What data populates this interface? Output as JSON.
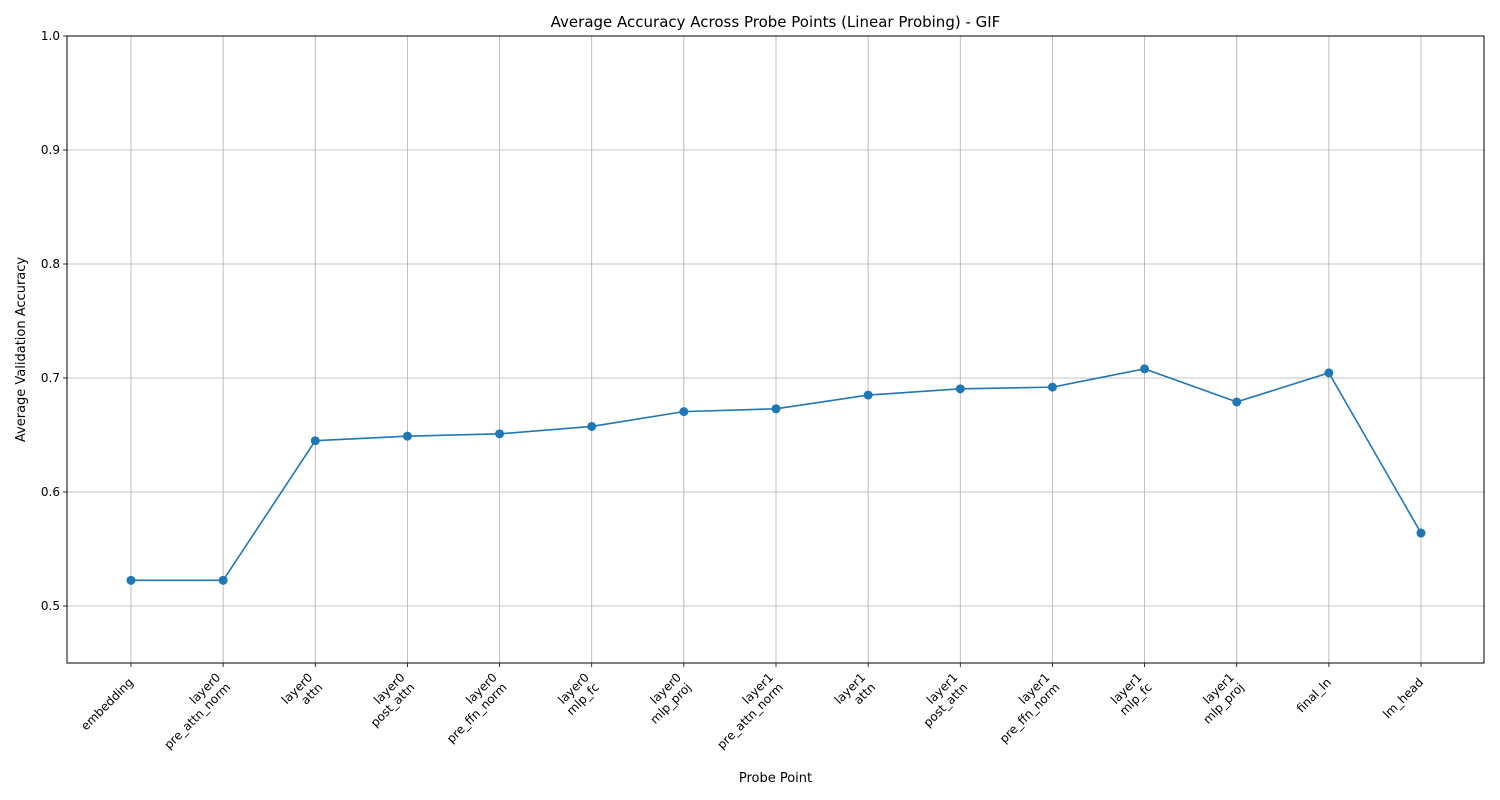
{
  "chart_data": {
    "type": "line",
    "title": "Average Accuracy Across Probe Points (Linear Probing) - GIF",
    "xlabel": "Probe Point",
    "ylabel": "Average Validation Accuracy",
    "ylim": [
      0.45,
      1.0
    ],
    "yticks": [
      "0.5",
      "0.6",
      "0.7",
      "0.8",
      "0.9",
      "1.0"
    ],
    "grid": true,
    "marker": "circle",
    "line_color": "#1f77b4",
    "categories": [
      [
        "embedding"
      ],
      [
        "layer0",
        "pre_attn_norm"
      ],
      [
        "layer0",
        "attn"
      ],
      [
        "layer0",
        "post_attn"
      ],
      [
        "layer0",
        "pre_ffn_norm"
      ],
      [
        "layer0",
        "mlp_fc"
      ],
      [
        "layer0",
        "mlp_proj"
      ],
      [
        "layer1",
        "pre_attn_norm"
      ],
      [
        "layer1",
        "attn"
      ],
      [
        "layer1",
        "post_attn"
      ],
      [
        "layer1",
        "pre_ffn_norm"
      ],
      [
        "layer1",
        "mlp_fc"
      ],
      [
        "layer1",
        "mlp_proj"
      ],
      [
        "final_ln"
      ],
      [
        "lm_head"
      ]
    ],
    "values": [
      0.5225,
      0.5225,
      0.645,
      0.649,
      0.651,
      0.6575,
      0.6705,
      0.673,
      0.685,
      0.6905,
      0.692,
      0.708,
      0.679,
      0.7045,
      0.564
    ]
  }
}
